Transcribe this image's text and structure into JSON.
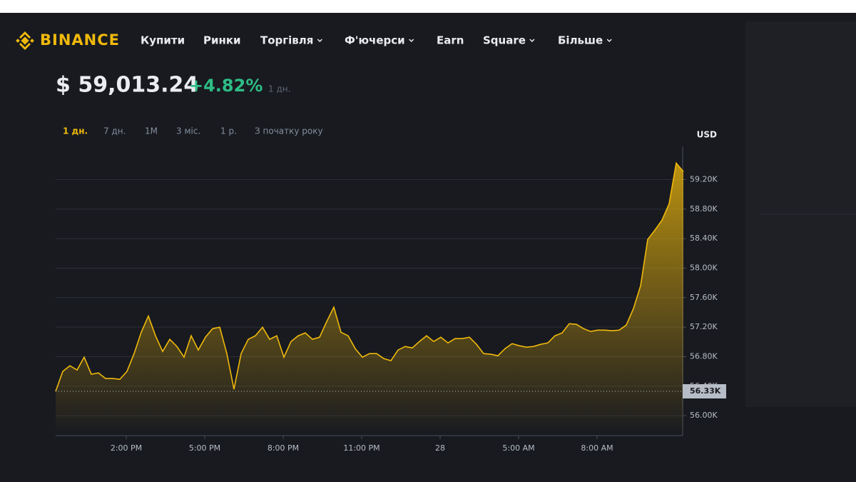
{
  "header": {
    "logo": "BINANCE",
    "nav": [
      {
        "label": "Купити",
        "dropdown": false
      },
      {
        "label": "Ринки",
        "dropdown": false
      },
      {
        "label": "Торгівля",
        "dropdown": true
      },
      {
        "label": "Ф'ючерси",
        "dropdown": true
      },
      {
        "label": "Earn",
        "dropdown": false
      },
      {
        "label": "Square",
        "dropdown": true
      },
      {
        "label": "Більше",
        "dropdown": true
      }
    ]
  },
  "price": {
    "value": "$ 59,013.24",
    "change": "+4.82%",
    "period": "1 дн."
  },
  "timeframes": {
    "items": [
      "1 дн.",
      "7 дн.",
      "1М",
      "3 міс.",
      "1 р.",
      "З початку року"
    ],
    "active": 0
  },
  "chart_data": {
    "type": "area",
    "currency": "USD",
    "color": "#f0b90b",
    "values": [
      56329,
      56600,
      56677,
      56619,
      56793,
      56561,
      56580,
      56503,
      56503,
      56493,
      56600,
      56841,
      57131,
      57350,
      57083,
      56870,
      57035,
      56938,
      56793,
      57083,
      56890,
      57064,
      57180,
      57199,
      56841,
      56358,
      56841,
      57035,
      57083,
      57199,
      57035,
      57083,
      56793,
      57006,
      57083,
      57122,
      57035,
      57064,
      57276,
      57470,
      57131,
      57083,
      56909,
      56793,
      56841,
      56841,
      56774,
      56745,
      56890,
      56938,
      56919,
      57006,
      57083,
      57006,
      57064,
      56986,
      57044,
      57044,
      57064,
      56967,
      56841,
      56832,
      56812,
      56909,
      56977,
      56948,
      56928,
      56938,
      56967,
      56986,
      57083,
      57122,
      57247,
      57238,
      57180,
      57141,
      57160,
      57160,
      57151,
      57160,
      57228,
      57451,
      57760,
      58389,
      58514,
      58650,
      58872,
      59423,
      59307
    ],
    "xlim": [
      11.3,
      35.3
    ],
    "xticks": [
      {
        "value": 14,
        "label": "2:00 PM"
      },
      {
        "value": 17,
        "label": "5:00 PM"
      },
      {
        "value": 20,
        "label": "8:00 PM"
      },
      {
        "value": 23,
        "label": "11:00 PM"
      },
      {
        "value": 26,
        "label": "28"
      },
      {
        "value": 29,
        "label": "5:00 AM"
      },
      {
        "value": 32,
        "label": "8:00 AM"
      }
    ],
    "ylim": [
      55730,
      59650
    ],
    "yticks": [
      {
        "value": 56000,
        "label": "56.00K"
      },
      {
        "value": 56400,
        "label": "56.40K"
      },
      {
        "value": 56800,
        "label": "56.80K"
      },
      {
        "value": 57200,
        "label": "57.20K"
      },
      {
        "value": 57600,
        "label": "57.60K"
      },
      {
        "value": 58000,
        "label": "58.00K"
      },
      {
        "value": 58400,
        "label": "58.40K"
      },
      {
        "value": 58800,
        "label": "58.80K"
      },
      {
        "value": 59200,
        "label": "59.20K"
      }
    ],
    "grid": true,
    "price_line": {
      "value": 56330,
      "label": "56.33K"
    }
  }
}
